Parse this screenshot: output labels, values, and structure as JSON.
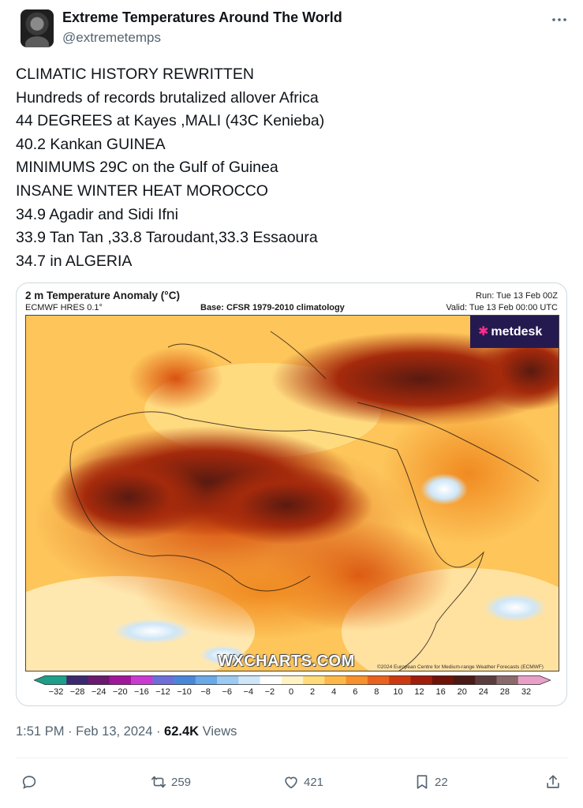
{
  "author": {
    "display_name": "Extreme Temperatures Around The World",
    "handle": "@extremetemps"
  },
  "tweet": {
    "lines": [
      "CLIMATIC HISTORY REWRITTEN",
      "Hundreds of records brutalized allover Africa",
      "44 DEGREES at Kayes ,MALI (43C Kenieba)",
      "40.2 Kankan GUINEA",
      "MINIMUMS 29C on the Gulf of Guinea",
      "INSANE WINTER HEAT MOROCCO",
      "34.9 Agadir and Sidi Ifni",
      "33.9 Tan Tan ,33.8 Taroudant,33.3 Essaoura",
      "34.7 in ALGERIA"
    ]
  },
  "map": {
    "title": "2 m Temperature Anomaly (°C)",
    "model": "ECMWF HRES 0.1°",
    "base": "Base: CFSR 1979-2010 climatology",
    "run": "Run: Tue 13 Feb 00Z",
    "valid": "Valid: Tue 13 Feb 00:00 UTC",
    "brand": "metdesk",
    "watermark": "WXCHARTS.COM",
    "copyright": "©2024 European Centre for Medium-range Weather Forecasts (ECMWF)",
    "colorbar_ticks": [
      "−32",
      "−28",
      "−24",
      "−20",
      "−16",
      "−12",
      "−10",
      "−8",
      "−6",
      "−4",
      "−2",
      "0",
      "2",
      "4",
      "6",
      "8",
      "10",
      "12",
      "16",
      "20",
      "24",
      "28",
      "32"
    ],
    "colorbar_colors": [
      "#1f9e89",
      "#3b2a6e",
      "#6a1b6e",
      "#a0189a",
      "#c93bd0",
      "#6d6fd8",
      "#4a86d8",
      "#6aa8e6",
      "#9ccaf0",
      "#cfe6f8",
      "#ffffff",
      "#fff2c4",
      "#ffdb7a",
      "#fdb84a",
      "#f7912d",
      "#e9621e",
      "#cc3a13",
      "#a01e0c",
      "#6e1409",
      "#4a1a17",
      "#5c3d3d",
      "#8a6a6a",
      "#e8a0c8"
    ]
  },
  "meta": {
    "time": "1:51 PM",
    "sep1": " · ",
    "date": "Feb 13, 2024",
    "sep2": " · ",
    "views_count": "62.4K",
    "views_label": " Views"
  },
  "actions": {
    "reply_icon": "reply-icon",
    "retweet_count": "259",
    "like_count": "421",
    "bookmark_count": "22",
    "share_icon": "share-icon"
  }
}
